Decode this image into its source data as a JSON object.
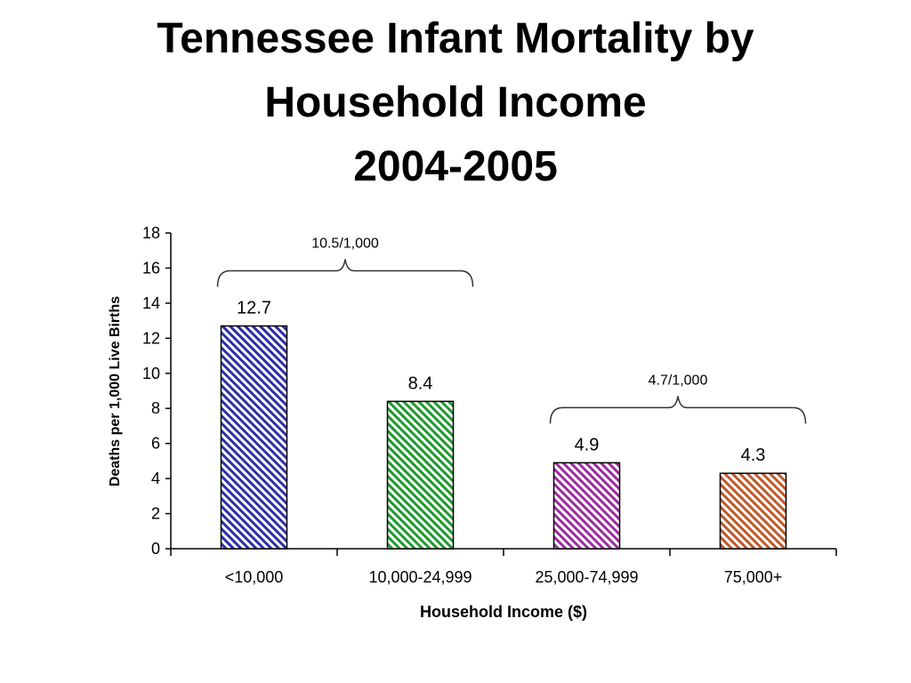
{
  "slide": {
    "title_lines": [
      "Tennessee Infant Mortality by",
      "Household Income",
      "2004-2005"
    ]
  },
  "chart_data": {
    "type": "bar",
    "title": "Tennessee Infant Mortality by Household Income 2004-2005",
    "xlabel": "Household Income ($)",
    "ylabel": "Deaths per 1,000 Live Births",
    "categories": [
      "<10,000",
      "10,000-24,999",
      "25,000-74,999",
      "75,000+"
    ],
    "values": [
      12.7,
      8.4,
      4.9,
      4.3
    ],
    "value_labels": [
      "12.7",
      "8.4",
      "4.9",
      "4.3"
    ],
    "ylim": [
      0,
      18
    ],
    "yticks": [
      0,
      2,
      4,
      6,
      8,
      10,
      12,
      14,
      16,
      18
    ],
    "grid": false,
    "bar_colors": [
      "#2b2fa8",
      "#1f9a2e",
      "#9b2aa0",
      "#c05a2a"
    ],
    "bar_pattern": "diagonal-hatch",
    "annotations": [
      {
        "text": "10.5/1,000",
        "spans_categories": [
          0,
          1
        ]
      },
      {
        "text": "4.7/1,000",
        "spans_categories": [
          2,
          3
        ]
      }
    ]
  }
}
